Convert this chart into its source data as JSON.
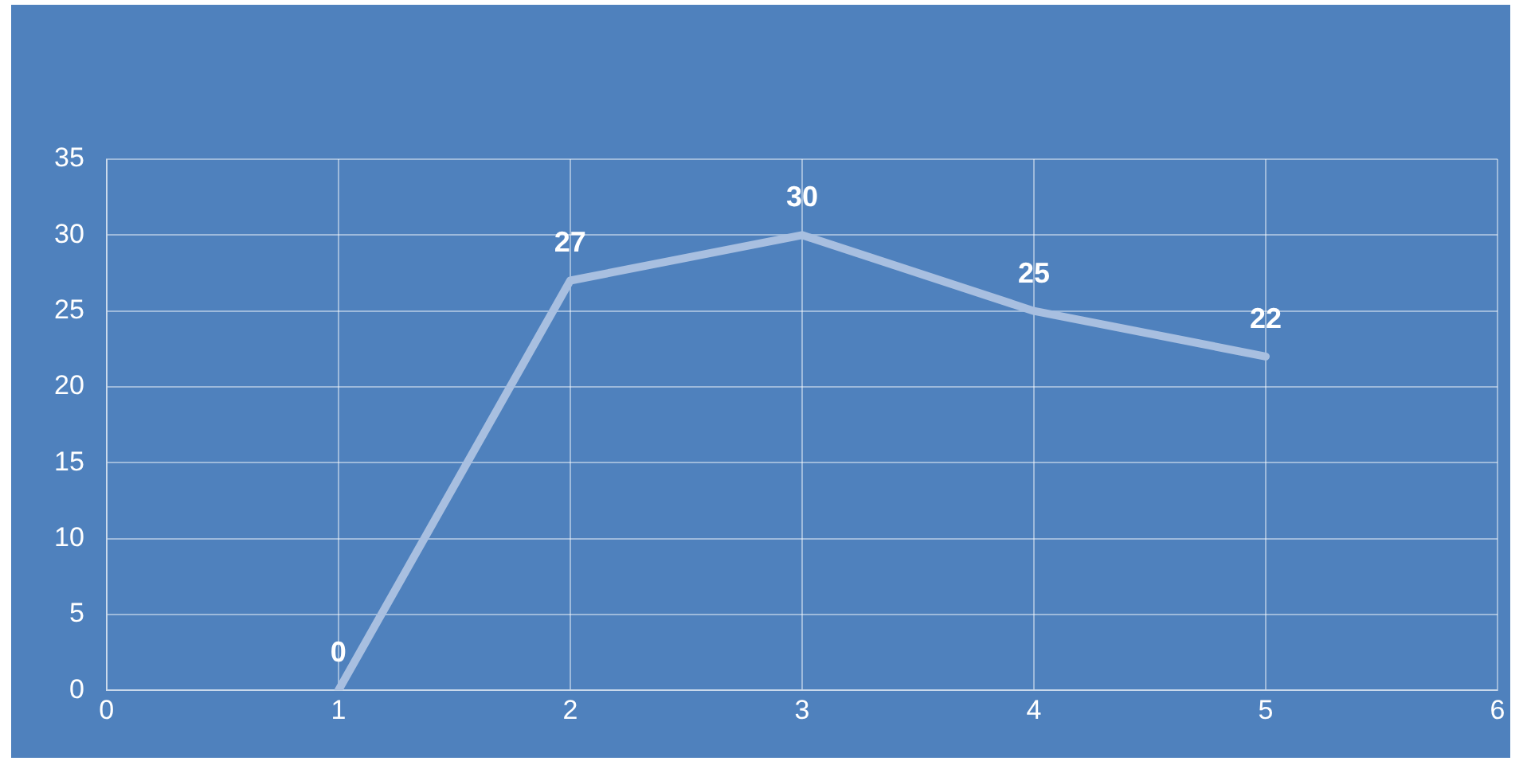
{
  "chart_data": {
    "type": "line",
    "x": [
      1,
      2,
      3,
      4,
      5
    ],
    "series": [
      {
        "color": "#a8bfe0",
        "values": [
          0,
          27,
          30,
          25,
          22
        ]
      }
    ],
    "xlim": [
      0,
      6
    ],
    "xticks": [
      0,
      1,
      2,
      3,
      4,
      5,
      6
    ],
    "ylim": [
      0,
      35
    ],
    "yticks": [
      0,
      5,
      10,
      15,
      20,
      25,
      30,
      35
    ],
    "grid": true,
    "legend": false,
    "marker": "none",
    "line_style": "solid",
    "data_labels": true
  }
}
